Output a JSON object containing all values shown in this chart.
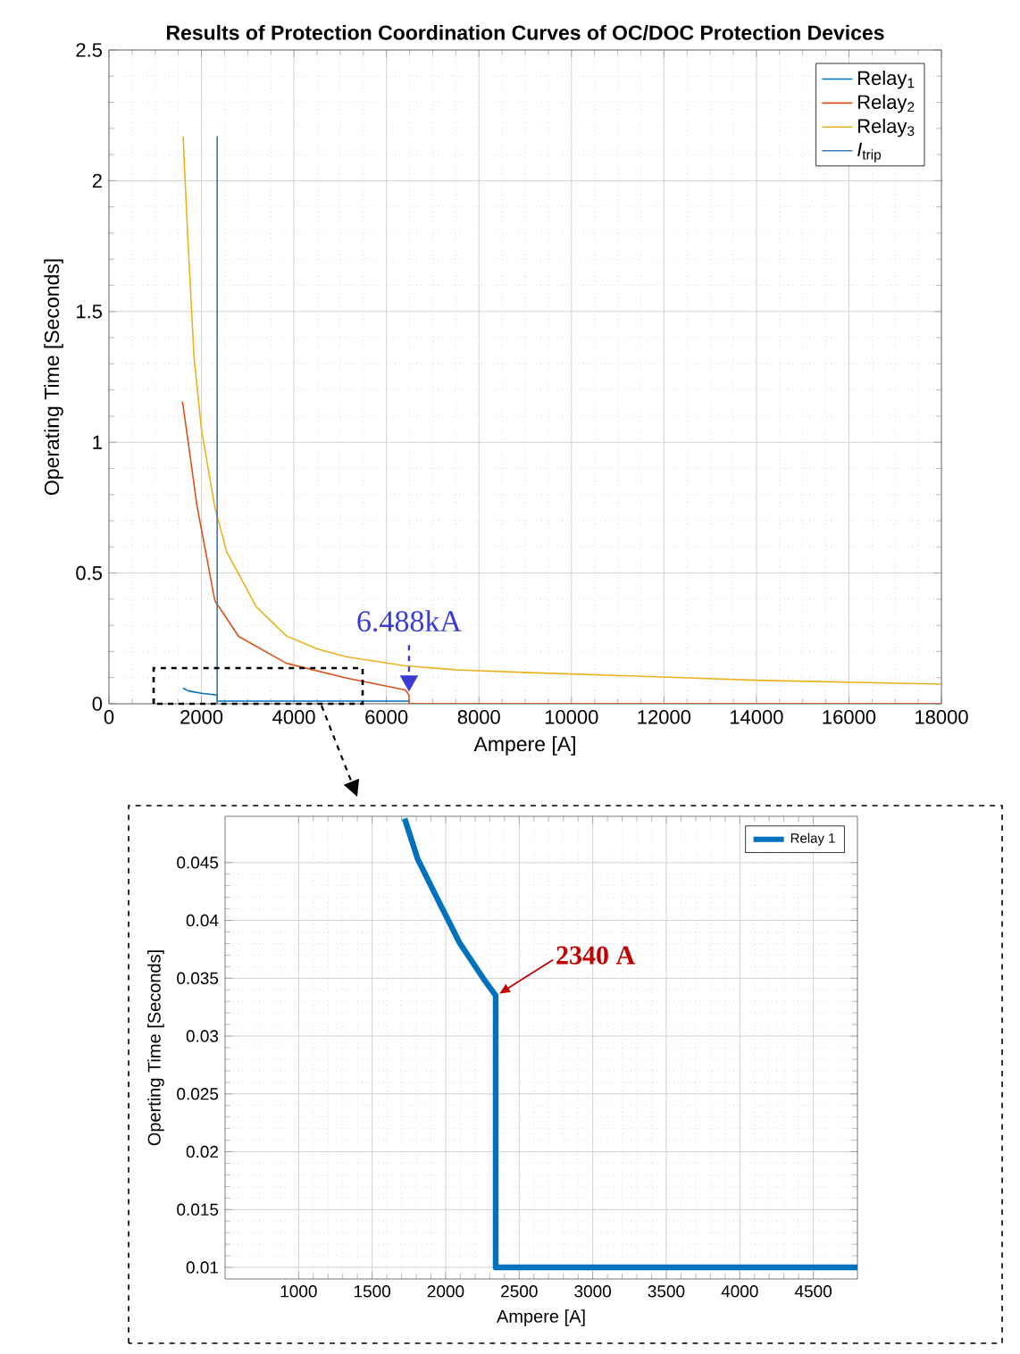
{
  "chart_data": [
    {
      "type": "line",
      "title": "Results of Protection Coordination Curves of OC/DOC Protection Devices",
      "xlabel": "Ampere [A]",
      "ylabel": "Operating Time [Seconds]",
      "xlim": [
        0,
        18000
      ],
      "ylim": [
        0,
        2.5
      ],
      "xticks": [
        0,
        2000,
        4000,
        6000,
        8000,
        10000,
        12000,
        14000,
        16000,
        18000
      ],
      "yticks": [
        0,
        0.5,
        1,
        1.5,
        2,
        2.5
      ],
      "grid": true,
      "legend": "top right",
      "series": [
        {
          "name": "Relay$_{1}$",
          "color": "#0072bd",
          "x": [
            1603,
            1720,
            2000,
            2340,
            2340,
            6488
          ],
          "values": [
            0.06,
            0.049,
            0.04,
            0.0335,
            0.01,
            0.01
          ]
        },
        {
          "name": "Relay$_{2}$",
          "color": "#d95319",
          "x": [
            1583,
            1603,
            1903,
            2290,
            2803,
            3834,
            5120,
            6409,
            6488,
            6488,
            18000
          ],
          "values": [
            1.155,
            1.14,
            0.758,
            0.394,
            0.258,
            0.155,
            0.099,
            0.053,
            0.033,
            0,
            0
          ]
        },
        {
          "name": "Relay$_{3}$",
          "color": "#edb120",
          "x": [
            1603,
            1700,
            1838,
            2000,
            2290,
            2548,
            3189,
            3834,
            4500,
            5120,
            6409,
            7500,
            8981,
            11560,
            14000,
            18000
          ],
          "values": [
            2.17,
            1.8,
            1.33,
            1.05,
            0.75,
            0.58,
            0.37,
            0.26,
            0.21,
            0.18,
            0.145,
            0.13,
            0.12,
            0.105,
            0.09,
            0.075
          ]
        },
        {
          "name": "*I*$_{trip}$",
          "color": "#3a78b8",
          "x": [
            2340,
            2340
          ],
          "values": [
            0,
            2.17
          ]
        }
      ],
      "annotations": [
        {
          "text": "6.488kA",
          "x": 6488,
          "y": 0.033
        }
      ]
    },
    {
      "type": "line",
      "xlabel": "Ampere [A]",
      "ylabel": "Operting Time [Seconds]",
      "xlim": [
        500,
        4800
      ],
      "ylim": [
        0.009,
        0.049
      ],
      "xticks": [
        1000,
        1500,
        2000,
        2500,
        3000,
        3500,
        4000,
        4500
      ],
      "yticks": [
        0.01,
        0.015,
        0.02,
        0.025,
        0.03,
        0.035,
        0.04,
        0.045
      ],
      "grid": true,
      "legend": "top right",
      "series": [
        {
          "name": "Relay 1",
          "color": "#0072bd",
          "x": [
            1721,
            1810,
            1931,
            2093,
            2255,
            2340,
            2340,
            4800
          ],
          "values": [
            0.0488,
            0.0453,
            0.0422,
            0.0381,
            0.035,
            0.0335,
            0.01,
            0.01
          ]
        }
      ],
      "annotations": [
        {
          "text": "2340 A",
          "x": 2340,
          "y": 0.0335
        }
      ]
    }
  ]
}
